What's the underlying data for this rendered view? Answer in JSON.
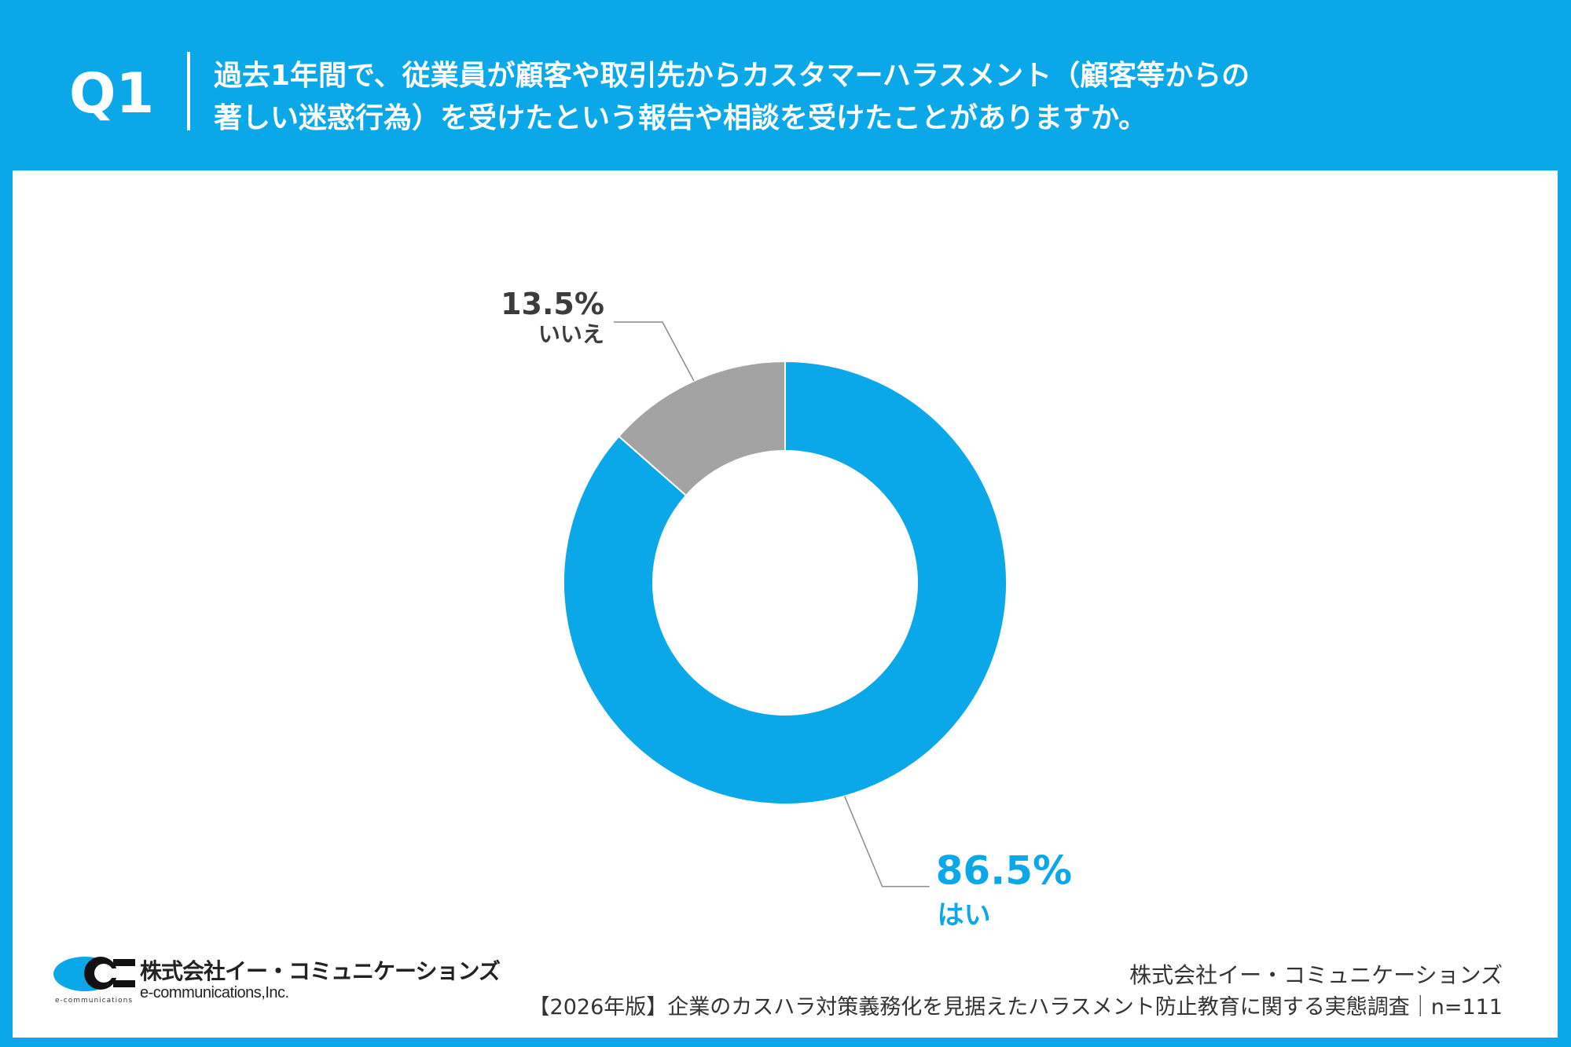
{
  "header": {
    "question_label": "Q1",
    "question_line1": "過去1年間で、従業員が顧客や取引先からカスタマーハラスメント（顧客等からの",
    "question_line2": "著しい迷惑行為）を受けたという報告や相談を受けたことがありますか。"
  },
  "chart_data": {
    "type": "pie",
    "variant": "donut",
    "categories": [
      "はい",
      "いいえ"
    ],
    "values": [
      86.5,
      13.5
    ],
    "value_labels": [
      "86.5%",
      "13.5%"
    ],
    "colors": [
      "#0aa8e8",
      "#a3a3a3"
    ],
    "label_colors": [
      "#0aa8e8",
      "#3c3c3c"
    ],
    "start": "top",
    "direction": "clockwise"
  },
  "footer": {
    "logo_company_jp": "株式会社イー・コミュニケーションズ",
    "logo_company_en": "e-communications,Inc.",
    "logo_small_text": "e-communications",
    "credit_company": "株式会社イー・コミュニケーションズ",
    "credit_survey": "【2026年版】企業のカスハラ対策義務化を見据えたハラスメント防止教育に関する実態調査｜n=111"
  }
}
